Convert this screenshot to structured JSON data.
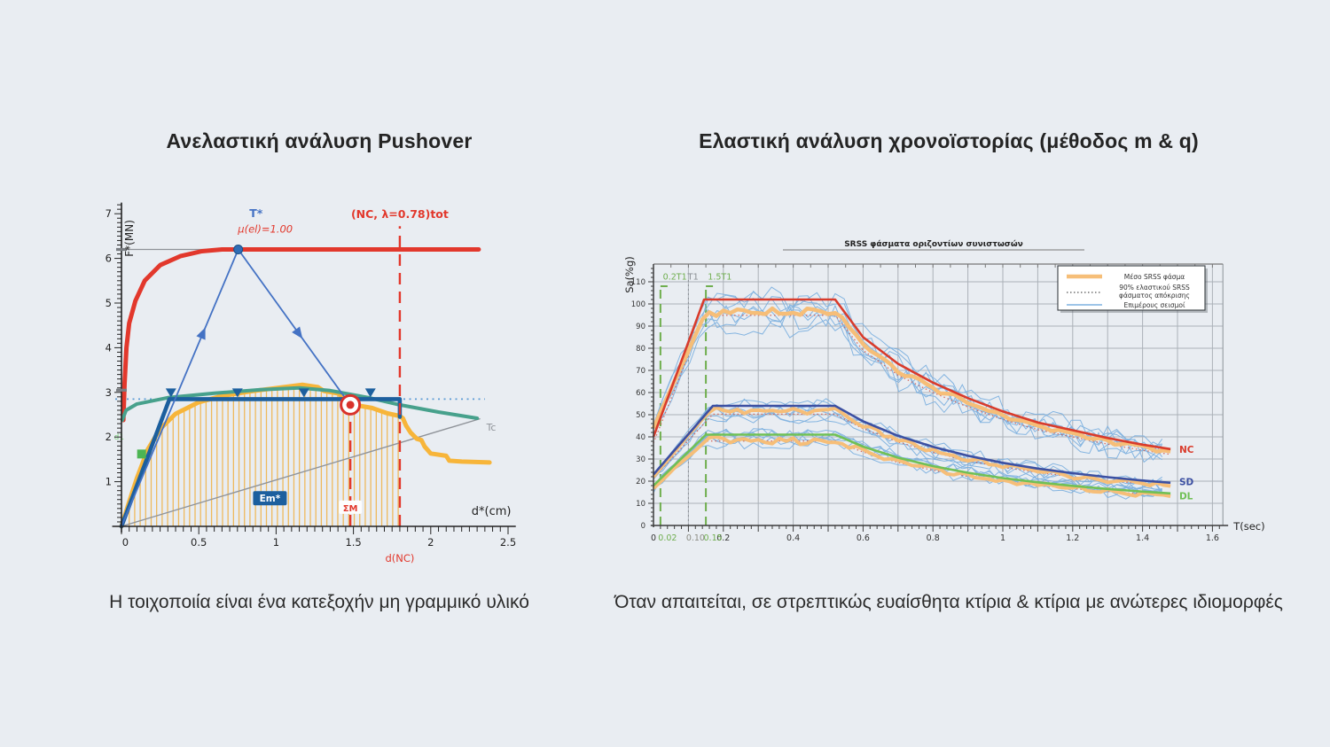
{
  "page": {
    "background": "#e9edf2"
  },
  "left_panel": {
    "title": "Ανελαστική ανάλυση Pushover",
    "caption": "Η τοιχοποιία είναι ένα κατεξοχήν μη γραμμικό υλικό"
  },
  "right_panel": {
    "title": "Ελαστική ανάλυση χρονοϊστορίας (μέθοδος m & q)",
    "caption": "Όταν απαιτείται, σε στρεπτικώς ευαίσθητα κτίρια & κτίρια με ανώτερες ιδιομορφές"
  },
  "chart_data": [
    {
      "type": "line",
      "name": "pushover-adrs-chart",
      "xlabel": "d*(cm)",
      "ylabel": "F*(MN)",
      "xlim": [
        0,
        2.5
      ],
      "ylim": [
        0,
        7.2
      ],
      "x_major_ticks": [
        0,
        0.5,
        1,
        1.5,
        2,
        2.5
      ],
      "y_major_ticks": [
        1,
        2,
        3,
        4,
        5,
        6,
        7
      ],
      "series": [
        {
          "name": "target-level-line",
          "color": "#8f9399",
          "width": 1.2,
          "points": [
            [
              0.02,
              6.2
            ],
            [
              2.3,
              6.2
            ]
          ]
        },
        {
          "name": "tc-period-line",
          "color": "#8f9399",
          "width": 1.4,
          "points": [
            [
              0,
              0
            ],
            [
              2.32,
              2.41
            ]
          ]
        },
        {
          "name": "elastic-spectrum",
          "color": "#e2382c",
          "width": 5,
          "points": [
            [
              0.012,
              2.38
            ],
            [
              0.02,
              3.2
            ],
            [
              0.032,
              4.0
            ],
            [
              0.05,
              4.55
            ],
            [
              0.09,
              5.05
            ],
            [
              0.15,
              5.5
            ],
            [
              0.25,
              5.85
            ],
            [
              0.38,
              6.05
            ],
            [
              0.52,
              6.16
            ],
            [
              0.65,
              6.2
            ],
            [
              2.31,
              6.2
            ]
          ]
        },
        {
          "name": "capacity-curve",
          "color": "#f7b53a",
          "width": 5,
          "points": [
            [
              0,
              0
            ],
            [
              0.05,
              0.55
            ],
            [
              0.1,
              1.08
            ],
            [
              0.17,
              1.72
            ],
            [
              0.25,
              2.18
            ],
            [
              0.35,
              2.52
            ],
            [
              0.5,
              2.78
            ],
            [
              0.65,
              2.92
            ],
            [
              0.85,
              3.03
            ],
            [
              1.05,
              3.12
            ],
            [
              1.17,
              3.17
            ],
            [
              1.27,
              3.12
            ],
            [
              1.31,
              3.03
            ],
            [
              1.41,
              2.97
            ],
            [
              1.43,
              2.86
            ],
            [
              1.5,
              2.8
            ],
            [
              1.52,
              2.71
            ],
            [
              1.62,
              2.65
            ],
            [
              1.72,
              2.53
            ],
            [
              1.8,
              2.47
            ],
            [
              1.82,
              2.42
            ],
            [
              1.84,
              2.26
            ],
            [
              1.87,
              2.1
            ],
            [
              1.91,
              1.96
            ],
            [
              1.94,
              1.93
            ],
            [
              1.96,
              1.79
            ],
            [
              2.0,
              1.63
            ],
            [
              2.1,
              1.58
            ],
            [
              2.12,
              1.47
            ],
            [
              2.2,
              1.45
            ],
            [
              2.38,
              1.43
            ]
          ]
        },
        {
          "name": "inelastic-demand-spectrum",
          "color": "#47a18c",
          "width": 4,
          "points": [
            [
              0.005,
              2.38
            ],
            [
              0.03,
              2.6
            ],
            [
              0.1,
              2.74
            ],
            [
              0.3,
              2.88
            ],
            [
              0.6,
              2.98
            ],
            [
              0.9,
              3.06
            ],
            [
              1.15,
              3.1
            ],
            [
              1.35,
              3.04
            ],
            [
              1.6,
              2.88
            ],
            [
              1.8,
              2.72
            ],
            [
              2.05,
              2.56
            ],
            [
              2.3,
              2.42
            ]
          ]
        },
        {
          "name": "bilinear-idealization",
          "color": "#1c5f9e",
          "width": 4.6,
          "points": [
            [
              0,
              0
            ],
            [
              0.31,
              2.85
            ],
            [
              1.8,
              2.85
            ],
            [
              1.8,
              2.45
            ]
          ]
        }
      ],
      "t_star_line": {
        "color": "#4472c4",
        "ascending": [
          [
            0,
            0
          ],
          [
            0.755,
            6.2
          ]
        ],
        "descending": [
          [
            0.755,
            6.2
          ],
          [
            1.5,
            2.62
          ]
        ]
      },
      "dotted_hline": {
        "y": 2.85,
        "x0": -0.04,
        "x1": 2.35,
        "color": "#5b9bd5"
      },
      "dashed_verticals": [
        {
          "x": 1.48,
          "y0": 0,
          "y1": 2.72
        },
        {
          "x": 1.8,
          "y0": 0,
          "y1": 6.72
        }
      ],
      "markers": {
        "peak_dot": [
          0.755,
          6.2
        ],
        "performance_point": [
          1.48,
          2.72
        ],
        "green_square": [
          0.13,
          1.62
        ],
        "line_triangles_x": [
          0.32,
          0.75,
          1.18,
          1.61
        ],
        "triangles_y": 2.85,
        "axis_dashes_y": [
          6.2,
          3.05
        ]
      },
      "hatch": {
        "x0": 0.05,
        "x1": 1.79,
        "step": 0.0355,
        "color": "#f0b042"
      },
      "labels": {
        "t_star": "T*",
        "mu_el": "μ(el)=1.00",
        "nc_top": "(NC, λ=0.78)tot",
        "em_star": "Em*",
        "sigma_m": "ΣΜ",
        "d_nc": "d(NC)",
        "tc": "Tc",
        "d1": "d1"
      }
    },
    {
      "type": "line",
      "name": "srss-spectra-chart",
      "title": "SRSS φάσματα οριζοντίων συνιστωσών",
      "xlabel": "T(sec)",
      "ylabel": "Sa(%g)",
      "xlim": [
        0,
        1.63
      ],
      "ylim": [
        0,
        118
      ],
      "x_major_ticks": [
        0,
        0.2,
        0.4,
        0.6,
        0.8,
        1,
        1.2,
        1.4,
        1.6
      ],
      "special_x_ticks": [
        {
          "x": 0.02,
          "label": "0.02",
          "color": "#6fae4e"
        },
        {
          "x": 0.1,
          "label": "0.10",
          "color": "#8b8b83"
        },
        {
          "x": 0.15,
          "label": "0.15",
          "color": "#6fae4e"
        }
      ],
      "y_major_ticks": [
        0,
        10,
        20,
        30,
        40,
        50,
        60,
        70,
        80,
        90,
        100,
        110
      ],
      "period_lines": [
        {
          "x": 0.02,
          "label": "0.2T1",
          "style": "dashed",
          "color": "#6fae4e"
        },
        {
          "x": 0.1,
          "label": "T1",
          "style": "dotted",
          "color": "#8b9095"
        },
        {
          "x": 0.15,
          "label": "1.5T1",
          "style": "dashed",
          "color": "#6fae4e"
        }
      ],
      "legend": {
        "entries": [
          {
            "label1": "Μέσο SRSS φάσμα",
            "label2": "",
            "swatch": "thick-orange"
          },
          {
            "label1": "90% ελαστικού SRSS",
            "label2": "φάσματος απόκρισης",
            "swatch": "dotted"
          },
          {
            "label1": "Επιμέρους σεισμοί",
            "label2": "",
            "swatch": "thin-blue"
          }
        ]
      },
      "mean_color": "#f6be78",
      "record_color": "#7fb2e0",
      "ninety_pct_color": "#d4574a",
      "ninety_pct_scale": 0.93,
      "families": [
        {
          "name": "NC",
          "color": "#d93b2b",
          "label_y": 34,
          "records": 7,
          "noise": 5.5,
          "envelope": [
            [
              0,
              40
            ],
            [
              0.145,
              102
            ],
            [
              0.52,
              102
            ],
            [
              0.6,
              85
            ],
            [
              0.7,
              73
            ],
            [
              0.8,
              64.5
            ],
            [
              0.9,
              57.5
            ],
            [
              1.0,
              51.5
            ],
            [
              1.1,
              46.5
            ],
            [
              1.2,
              43
            ],
            [
              1.3,
              39.5
            ],
            [
              1.4,
              36.5
            ],
            [
              1.48,
              34.5
            ]
          ],
          "mean": [
            [
              0,
              44
            ],
            [
              0.15,
              96.5
            ],
            [
              0.52,
              96
            ],
            [
              0.6,
              82
            ],
            [
              0.7,
              70
            ],
            [
              0.8,
              62
            ],
            [
              0.9,
              55.5
            ],
            [
              1.0,
              49.5
            ],
            [
              1.1,
              45
            ],
            [
              1.2,
              41.5
            ],
            [
              1.3,
              38
            ],
            [
              1.4,
              35.5
            ],
            [
              1.48,
              33.5
            ]
          ]
        },
        {
          "name": "SD",
          "color": "#3c50a2",
          "label_y": 19.5,
          "records": 6,
          "noise": 3.2,
          "envelope": [
            [
              0,
              23
            ],
            [
              0.17,
              54
            ],
            [
              0.52,
              54
            ],
            [
              0.6,
              47
            ],
            [
              0.7,
              40.5
            ],
            [
              0.8,
              35.5
            ],
            [
              0.9,
              31.5
            ],
            [
              1.0,
              28.3
            ],
            [
              1.1,
              25.7
            ],
            [
              1.2,
              23.6
            ],
            [
              1.3,
              21.8
            ],
            [
              1.4,
              20.3
            ],
            [
              1.48,
              19.3
            ]
          ],
          "mean": [
            [
              0,
              22
            ],
            [
              0.16,
              52
            ],
            [
              0.52,
              51.5
            ],
            [
              0.6,
              45
            ],
            [
              0.7,
              38.8
            ],
            [
              0.8,
              33.8
            ],
            [
              0.9,
              30
            ],
            [
              1.0,
              27
            ],
            [
              1.1,
              24.5
            ],
            [
              1.2,
              22.4
            ],
            [
              1.3,
              20.6
            ],
            [
              1.4,
              19.1
            ],
            [
              1.48,
              18.2
            ]
          ]
        },
        {
          "name": "DL",
          "color": "#70c055",
          "label_y": 13,
          "records": 6,
          "noise": 2.6,
          "envelope": [
            [
              0,
              18
            ],
            [
              0.15,
              41
            ],
            [
              0.52,
              41
            ],
            [
              0.6,
              35.6
            ],
            [
              0.7,
              30.6
            ],
            [
              0.8,
              26.8
            ],
            [
              0.9,
              23.8
            ],
            [
              1.0,
              21.4
            ],
            [
              1.1,
              19.5
            ],
            [
              1.2,
              17.9
            ],
            [
              1.3,
              16.5
            ],
            [
              1.4,
              15.3
            ],
            [
              1.48,
              14.5
            ]
          ],
          "mean": [
            [
              0,
              17
            ],
            [
              0.15,
              38.5
            ],
            [
              0.52,
              38
            ],
            [
              0.6,
              33.5
            ],
            [
              0.7,
              29
            ],
            [
              0.8,
              25.4
            ],
            [
              0.9,
              22.5
            ],
            [
              1.0,
              20.2
            ],
            [
              1.1,
              18.4
            ],
            [
              1.2,
              16.8
            ],
            [
              1.3,
              15.5
            ],
            [
              1.4,
              14.3
            ],
            [
              1.48,
              13.5
            ]
          ]
        }
      ]
    }
  ]
}
